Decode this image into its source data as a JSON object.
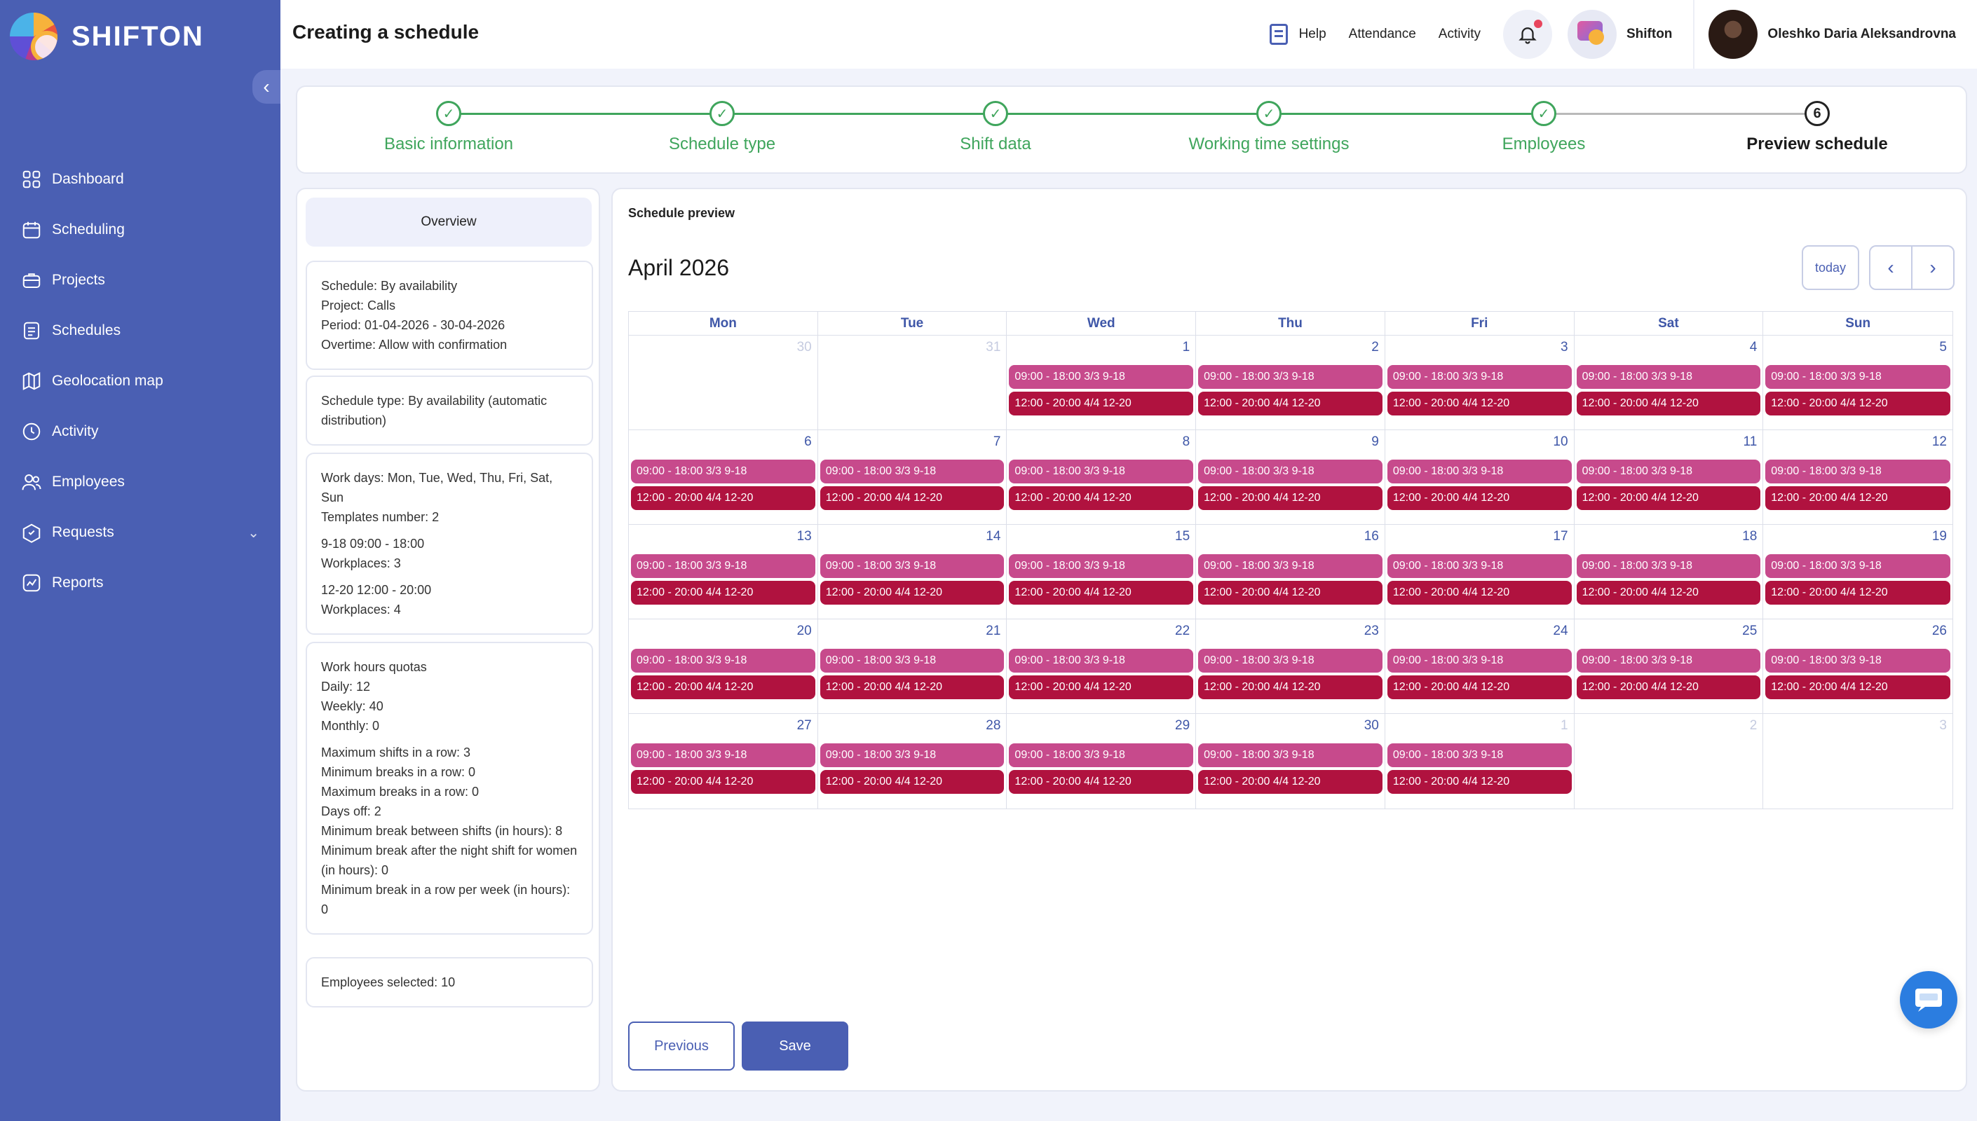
{
  "brand": "SHIFTON",
  "sidebar": {
    "items": [
      {
        "label": "Dashboard",
        "icon": "grid-icon"
      },
      {
        "label": "Scheduling",
        "icon": "calendar-icon"
      },
      {
        "label": "Projects",
        "icon": "briefcase-icon"
      },
      {
        "label": "Schedules",
        "icon": "document-icon"
      },
      {
        "label": "Geolocation map",
        "icon": "map-icon"
      },
      {
        "label": "Activity",
        "icon": "clock-icon"
      },
      {
        "label": "Employees",
        "icon": "users-icon"
      },
      {
        "label": "Requests",
        "icon": "inbox-icon"
      },
      {
        "label": "Reports",
        "icon": "chart-icon"
      }
    ]
  },
  "header": {
    "title": "Creating a schedule",
    "help": "Help",
    "attendance": "Attendance",
    "activity": "Activity",
    "company": "Shifton",
    "user": "Oleshko Daria Aleksandrovna"
  },
  "stepper": {
    "steps": [
      {
        "label": "Basic information",
        "done": true
      },
      {
        "label": "Schedule type",
        "done": true
      },
      {
        "label": "Shift data",
        "done": true
      },
      {
        "label": "Working time settings",
        "done": true
      },
      {
        "label": "Employees",
        "done": true
      },
      {
        "label": "Preview schedule",
        "number": "6",
        "done": false
      }
    ]
  },
  "overview": {
    "tab": "Overview",
    "basic": [
      "Schedule: By availability",
      "Project: Calls",
      "Period: 01-04-2026 - 30-04-2026",
      "Overtime: Allow with confirmation"
    ],
    "type": "Schedule type: By availability (automatic distribution)",
    "work_days": "Work days: Mon, Tue, Wed, Thu, Fri, Sat, Sun",
    "templates_number": "Templates number: 2",
    "template1_name": "9-18 09:00 - 18:00",
    "template1_places": "Workplaces: 3",
    "template2_name": "12-20 12:00 - 20:00",
    "template2_places": "Workplaces: 4",
    "quotas_title": "Work hours quotas",
    "daily": "Daily: 12",
    "weekly": "Weekly: 40",
    "monthly": "Monthly: 0",
    "max_shifts": "Maximum shifts in a row: 3",
    "min_breaks": "Minimum breaks in a row: 0",
    "max_breaks": "Maximum breaks in a row: 0",
    "days_off": "Days off: 2",
    "min_break_shifts": "Minimum break between shifts (in hours): 8",
    "min_break_night": "Minimum break after the night shift for women (in hours): 0",
    "min_break_week": "Minimum break in a row per week (in hours): 0",
    "employees_selected": "Employees selected: 10"
  },
  "calendar": {
    "panel_title": "Schedule preview",
    "month": "April 2026",
    "today": "today",
    "weekdays": [
      "Mon",
      "Tue",
      "Wed",
      "Thu",
      "Fri",
      "Sat",
      "Sun"
    ],
    "event_a": "09:00 - 18:00 3/3 9-18",
    "event_b": "12:00 - 20:00 4/4 12-20",
    "days": [
      {
        "d": "30",
        "other": true,
        "a": false,
        "b": false
      },
      {
        "d": "31",
        "other": true,
        "a": false,
        "b": false
      },
      {
        "d": "1",
        "other": false,
        "a": true,
        "b": true
      },
      {
        "d": "2",
        "other": false,
        "a": true,
        "b": true
      },
      {
        "d": "3",
        "other": false,
        "a": true,
        "b": true
      },
      {
        "d": "4",
        "other": false,
        "a": true,
        "b": true
      },
      {
        "d": "5",
        "other": false,
        "a": true,
        "b": true
      },
      {
        "d": "6",
        "other": false,
        "a": true,
        "b": true
      },
      {
        "d": "7",
        "other": false,
        "a": true,
        "b": true
      },
      {
        "d": "8",
        "other": false,
        "a": true,
        "b": true
      },
      {
        "d": "9",
        "other": false,
        "a": true,
        "b": true
      },
      {
        "d": "10",
        "other": false,
        "a": true,
        "b": true
      },
      {
        "d": "11",
        "other": false,
        "a": true,
        "b": true
      },
      {
        "d": "12",
        "other": false,
        "a": true,
        "b": true
      },
      {
        "d": "13",
        "other": false,
        "a": true,
        "b": true
      },
      {
        "d": "14",
        "other": false,
        "a": true,
        "b": true
      },
      {
        "d": "15",
        "other": false,
        "a": true,
        "b": true
      },
      {
        "d": "16",
        "other": false,
        "a": true,
        "b": true
      },
      {
        "d": "17",
        "other": false,
        "a": true,
        "b": true
      },
      {
        "d": "18",
        "other": false,
        "a": true,
        "b": true
      },
      {
        "d": "19",
        "other": false,
        "a": true,
        "b": true
      },
      {
        "d": "20",
        "other": false,
        "a": true,
        "b": true
      },
      {
        "d": "21",
        "other": false,
        "a": true,
        "b": true
      },
      {
        "d": "22",
        "other": false,
        "a": true,
        "b": true
      },
      {
        "d": "23",
        "other": false,
        "a": true,
        "b": true
      },
      {
        "d": "24",
        "other": false,
        "a": true,
        "b": true
      },
      {
        "d": "25",
        "other": false,
        "a": true,
        "b": true
      },
      {
        "d": "26",
        "other": false,
        "a": true,
        "b": true
      },
      {
        "d": "27",
        "other": false,
        "a": true,
        "b": true
      },
      {
        "d": "28",
        "other": false,
        "a": true,
        "b": true
      },
      {
        "d": "29",
        "other": false,
        "a": true,
        "b": true
      },
      {
        "d": "30",
        "other": false,
        "a": true,
        "b": true
      },
      {
        "d": "1",
        "other": true,
        "a": true,
        "b": true
      },
      {
        "d": "2",
        "other": true,
        "a": false,
        "b": false
      },
      {
        "d": "3",
        "other": true,
        "a": false,
        "b": false
      }
    ]
  },
  "actions": {
    "previous": "Previous",
    "save": "Save"
  },
  "colors": {
    "primary": "#4a5fb3",
    "success": "#3fa55c",
    "event_a": "#c74a8c",
    "event_b": "#b0123f"
  }
}
